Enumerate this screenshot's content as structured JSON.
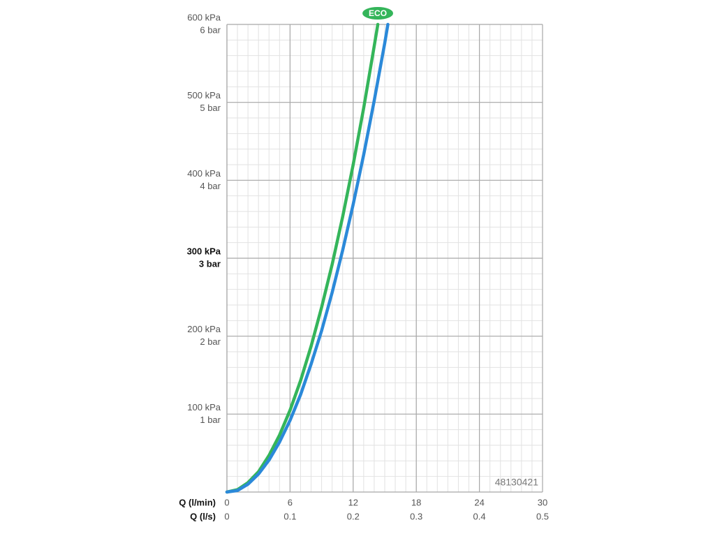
{
  "chart_data": {
    "type": "line",
    "xlabel": "Q (l/min)",
    "x2label": "Q (l/s)",
    "xlim": [
      0,
      30
    ],
    "xticks": [
      0,
      6,
      12,
      18,
      24,
      30
    ],
    "x2lim": [
      0,
      0.5
    ],
    "x2ticks": [
      0,
      0.1,
      0.2,
      0.3,
      0.4,
      0.5
    ],
    "ylim": [
      0,
      600
    ],
    "yticks": [
      {
        "value": 100,
        "label": "100 kPa"
      },
      {
        "value": 200,
        "label": "200 kPa"
      },
      {
        "value": 300,
        "label": "300 kPa"
      },
      {
        "value": 400,
        "label": "400 kPa"
      },
      {
        "value": 500,
        "label": "500 kPa"
      },
      {
        "value": 600,
        "label": "600 kPa"
      }
    ],
    "y2lim": [
      0,
      6
    ],
    "y2ticks": [
      {
        "value": 1,
        "label": "1 bar"
      },
      {
        "value": 2,
        "label": "2 bar"
      },
      {
        "value": 3,
        "label": "3 bar"
      },
      {
        "value": 4,
        "label": "4 bar"
      },
      {
        "value": 5,
        "label": "5 bar"
      },
      {
        "value": 6,
        "label": "6 bar"
      }
    ],
    "bold_ytick": 300,
    "grid": true,
    "minor_xstep": 1,
    "minor_ystep": 20,
    "annotation": "48130421",
    "series": [
      {
        "name": "ECO",
        "color": "#34b55a",
        "x": [
          0,
          1,
          2,
          3,
          4,
          5,
          6,
          7,
          8,
          9,
          10,
          11,
          12,
          13,
          14,
          14.34
        ],
        "values": [
          0,
          3,
          12,
          26,
          47,
          73,
          105,
          143,
          187,
          237,
          292,
          353,
          420,
          493,
          572,
          600
        ]
      },
      {
        "color": "#2b89d9",
        "x": [
          0,
          1,
          2,
          3,
          4,
          5,
          6,
          7,
          8,
          9,
          10,
          11,
          12,
          13,
          14,
          15,
          15.3
        ],
        "values": [
          0,
          2,
          10,
          23,
          41,
          64,
          92,
          125,
          164,
          207,
          256,
          310,
          369,
          433,
          502,
          576,
          600
        ]
      }
    ]
  }
}
